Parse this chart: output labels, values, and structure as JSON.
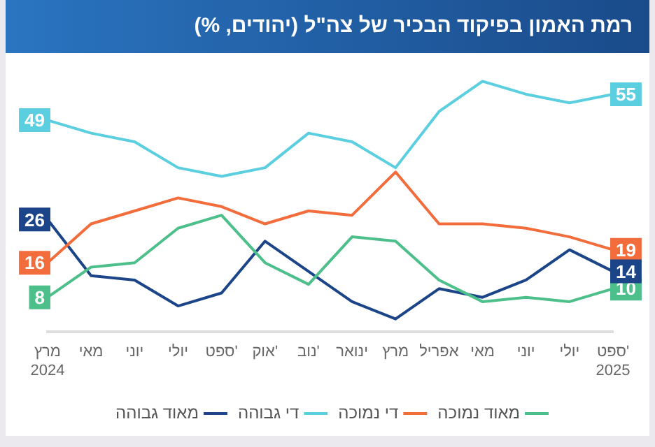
{
  "chart_data": {
    "type": "line",
    "title": "רמת האמון בפיקוד הבכיר של צה\"ל (יהודים, %)",
    "categories": [
      "מרץ 2024",
      "מאי",
      "יוני",
      "יולי",
      "ספט'",
      "אוק'",
      "נוב'",
      "ינואר",
      "מרץ",
      "אפריל",
      "מאי",
      "יוני",
      "יולי",
      "ספט' 2025"
    ],
    "grid": false,
    "legend": "bottom",
    "marker": "none",
    "line_style": "solid",
    "series": [
      {
        "name": "מאוד נמוכה",
        "color": "#4cbf8a",
        "values": [
          8,
          15,
          16,
          24,
          27,
          16,
          11,
          22,
          21,
          12,
          7,
          8,
          7,
          10
        ],
        "value_labels": [
          "8",
          null,
          null,
          null,
          null,
          null,
          null,
          null,
          null,
          null,
          null,
          null,
          null,
          "10"
        ]
      },
      {
        "name": "די נמוכה",
        "color": "#f26c3c",
        "values": [
          16,
          25,
          28,
          31,
          29,
          25,
          28,
          27,
          37,
          25,
          25,
          24,
          22,
          19
        ],
        "value_labels": [
          "16",
          null,
          null,
          null,
          null,
          null,
          null,
          null,
          null,
          null,
          null,
          null,
          null,
          "19"
        ]
      },
      {
        "name": "די גבוהה",
        "color": "#5bcfe0",
        "values": [
          49,
          46,
          44,
          38,
          36,
          38,
          46,
          44,
          38,
          51,
          58,
          55,
          53,
          55
        ],
        "value_labels": [
          "49",
          null,
          null,
          null,
          null,
          null,
          null,
          null,
          null,
          null,
          null,
          null,
          null,
          "55"
        ]
      },
      {
        "name": "מאוד גבוהה",
        "color": "#1c4589",
        "values": [
          26,
          13,
          12,
          6,
          9,
          21,
          14,
          7,
          3,
          10,
          8,
          12,
          19,
          14
        ],
        "value_labels": [
          "26",
          null,
          null,
          null,
          null,
          null,
          null,
          null,
          null,
          null,
          null,
          null,
          null,
          "14"
        ]
      }
    ]
  }
}
